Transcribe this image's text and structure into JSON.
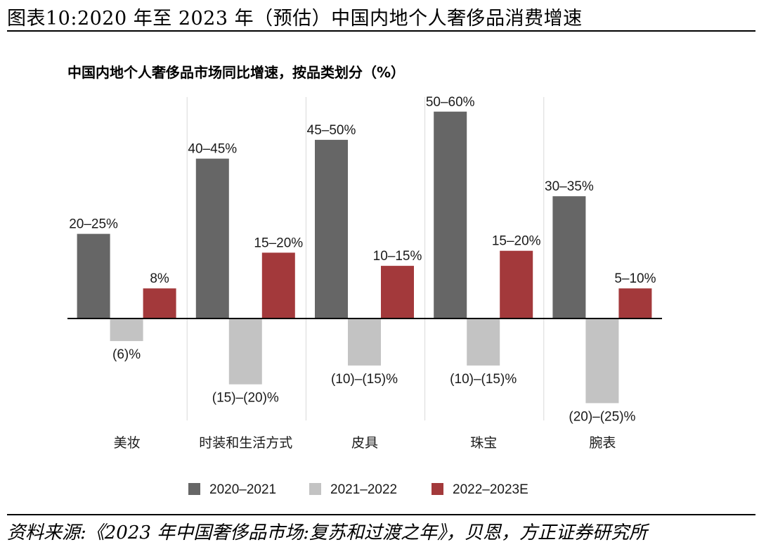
{
  "page": {
    "figure_title": "图表10:2020 年至 2023 年（预估）中国内地个人奢侈品消费增速",
    "source_note": "资料来源:《2023 年中国奢侈品市场:复苏和过渡之年》，贝恩，方正证券研究所"
  },
  "chart_data": {
    "type": "bar",
    "title": "中国内地个人奢侈品市场同比增速，按品类划分（%）",
    "xlabel": "",
    "ylabel": "",
    "ylim": [
      -30,
      65
    ],
    "grid": false,
    "legend_position": "bottom-center",
    "categories": [
      "美妆",
      "时装和生活方式",
      "皮具",
      "珠宝",
      "腕表"
    ],
    "series": [
      {
        "name": "2020–2021",
        "color": "#666666",
        "values": [
          22.5,
          42.5,
          47.5,
          55,
          32.5
        ],
        "labels": [
          "20–25%",
          "40–45%",
          "45–50%",
          "50–60%",
          "30–35%"
        ]
      },
      {
        "name": "2021–2022",
        "color": "#c3c3c3",
        "values": [
          -6,
          -17.5,
          -12.5,
          -12.5,
          -22.5
        ],
        "labels": [
          "(6)%",
          "(15)–(20)%",
          "(10)–(15)%",
          "(10)–(15)%",
          "(20)–(25)%"
        ]
      },
      {
        "name": "2022–2023E",
        "color": "#a3393b",
        "values": [
          8,
          17.5,
          14,
          18,
          8
        ],
        "labels": [
          "8%",
          "15–20%",
          "10–15%",
          "15–20%",
          "5–10%"
        ]
      }
    ]
  }
}
